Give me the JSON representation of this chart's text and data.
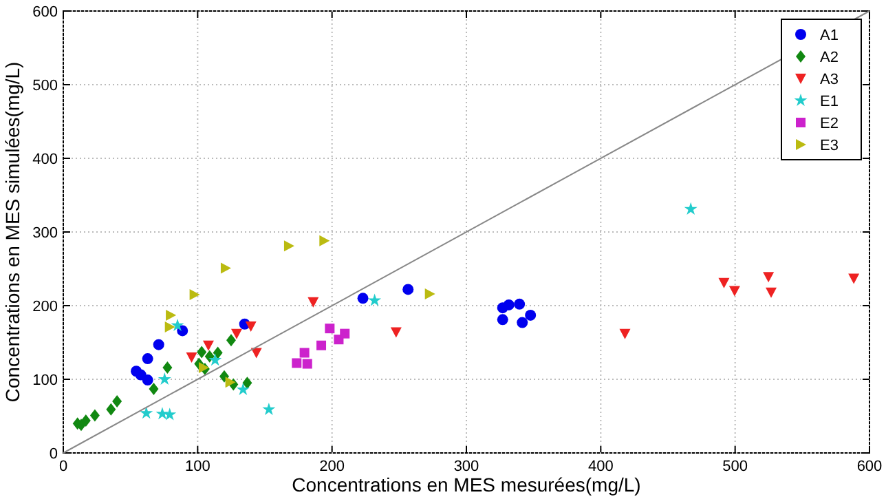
{
  "chart_data": {
    "type": "scatter",
    "xlabel": "Concentrations en MES mesurées(mg/L)",
    "ylabel": "Concentrations en MES simulées(mg/L)",
    "xlim": [
      0,
      600
    ],
    "ylim": [
      0,
      600
    ],
    "xticks": [
      0,
      100,
      200,
      300,
      400,
      500,
      600
    ],
    "yticks": [
      0,
      100,
      200,
      300,
      400,
      500,
      600
    ],
    "grid": true,
    "legend": "top right",
    "series": [
      {
        "name": "A1",
        "color": "#0000ee",
        "marker": "circle",
        "x": [
          54.3,
          57.7,
          62.8,
          62.8,
          71,
          88.7,
          135,
          223,
          256.6,
          327,
          331.6,
          339.5,
          347.7,
          341.6,
          327
        ],
        "values": [
          111,
          106,
          99,
          128,
          147,
          166,
          175,
          210,
          222,
          197,
          201,
          202,
          187,
          177,
          181
        ]
      },
      {
        "name": "A2",
        "color": "#118811",
        "marker": "diamond",
        "x": [
          10.6,
          13.3,
          16.8,
          23.5,
          35.5,
          40,
          67.3,
          77.5,
          103,
          108.9,
          115,
          101,
          105.4,
          119.8,
          126.6,
          136.9,
          124.9
        ],
        "values": [
          40,
          38,
          44,
          51,
          59,
          70,
          87,
          116,
          137,
          131,
          136,
          121,
          114,
          104,
          93,
          95,
          153
        ]
      },
      {
        "name": "A3",
        "color": "#ee2222",
        "marker": "triangle-down",
        "x": [
          95.5,
          108,
          129,
          139.6,
          143.7,
          186,
          247.7,
          418,
          491.7,
          499.6,
          524.8,
          526.8,
          588.3
        ],
        "values": [
          130,
          146,
          162,
          172,
          136,
          205,
          164,
          162,
          231,
          220,
          239,
          218,
          237
        ]
      },
      {
        "name": "E1",
        "color": "#22cccc",
        "marker": "star",
        "x": [
          61.8,
          73.7,
          79.2,
          75.4,
          85,
          113,
          133.8,
          153,
          231.7,
          467
        ],
        "values": [
          54,
          53,
          52,
          100,
          173,
          126,
          86,
          59,
          207,
          331
        ]
      },
      {
        "name": "E2",
        "color": "#cc22cc",
        "marker": "square",
        "x": [
          173.7,
          181.6,
          179.5,
          192,
          198.3,
          205,
          209.5
        ],
        "values": [
          122,
          121,
          136,
          146,
          169,
          154,
          162
        ]
      },
      {
        "name": "E3",
        "color": "#bbbb11",
        "marker": "triangle-right",
        "x": [
          79.9,
          79.2,
          97.6,
          120.8,
          167.9,
          104.4,
          124.2,
          194.2,
          272.7
        ],
        "values": [
          187,
          171,
          215,
          251,
          281,
          116,
          96,
          288,
          216
        ]
      },
      {
        "type": "line",
        "color": "#888888",
        "marker": "none",
        "line_style": "solid",
        "x": [
          0,
          600
        ],
        "values": [
          0,
          600
        ]
      }
    ]
  }
}
